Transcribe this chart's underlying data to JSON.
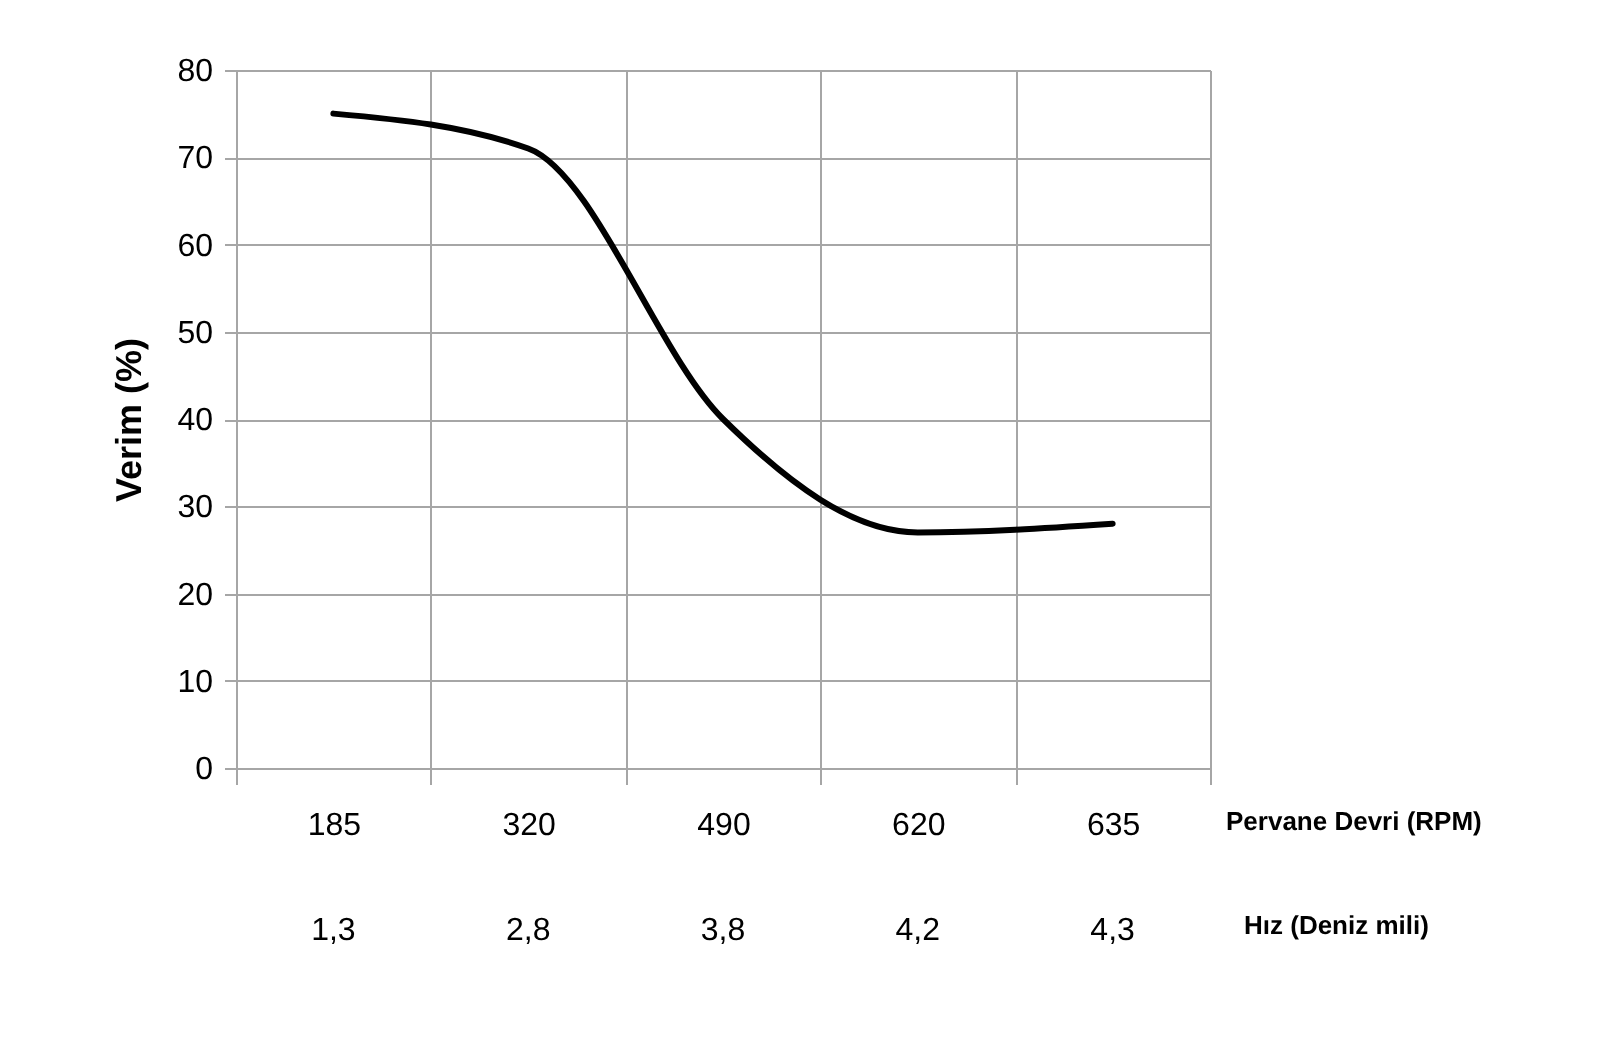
{
  "chart_data": {
    "type": "line",
    "ylabel": "Verim (%)",
    "xlabel": "Pervane Devri (RPM)",
    "categories": [
      "185",
      "320",
      "490",
      "620",
      "635"
    ],
    "series": [
      {
        "color": "#000000",
        "values": [
          75,
          71,
          40,
          27,
          28
        ]
      }
    ],
    "ylim": [
      0,
      80
    ],
    "yticks": [
      0,
      10,
      20,
      30,
      40,
      50,
      60,
      70,
      80
    ],
    "grid": true,
    "marker": "none",
    "line_style": "solid",
    "annotations": [
      "Hız (Deniz mili)",
      "1,3",
      "2,8",
      "3,8",
      "4,2",
      "4,3"
    ]
  }
}
